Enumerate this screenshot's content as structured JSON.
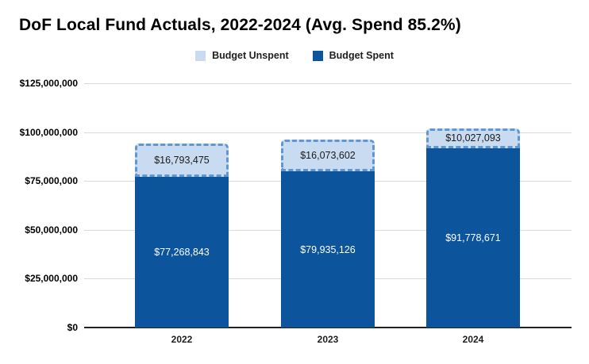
{
  "header": {
    "title": "DoF Local Fund Actuals, 2022-2024 (Avg. Spend 85.2%)"
  },
  "legend": {
    "items": [
      {
        "label": "Budget Unspent",
        "swatch": "#c9dbf1"
      },
      {
        "label": "Budget Spent",
        "swatch": "#0c549c"
      }
    ]
  },
  "chart_data": {
    "type": "bar",
    "stacked": true,
    "title": "DoF Local Fund Actuals, 2022-2024 (Avg. Spend 85.2%)",
    "categories": [
      "2022",
      "2023",
      "2024"
    ],
    "series": [
      {
        "name": "Budget Spent",
        "color": "#0c549c",
        "label_color": "#ffffff",
        "values": [
          77268843,
          79935126,
          91778671
        ],
        "data_labels": [
          "$77,268,843",
          "$79,935,126",
          "$91,778,671"
        ]
      },
      {
        "name": "Budget Unspent",
        "color": "#c9dbf1",
        "border_color": "#5e97d2",
        "border_style": "dashed",
        "label_color": "#1a1a1a",
        "values": [
          16793475,
          16073602,
          10027093
        ],
        "data_labels": [
          "$16,793,475",
          "$16,073,602",
          "$10,027,093"
        ]
      }
    ],
    "stack_order_bottom_to_top": [
      "Budget Spent",
      "Budget Unspent"
    ],
    "totals": [
      94062318,
      96008728,
      101805764
    ],
    "xlabel": "",
    "ylabel": "",
    "ylim": [
      0,
      125000000
    ],
    "yticks": [
      0,
      25000000,
      50000000,
      75000000,
      100000000,
      125000000
    ],
    "ytick_labels": [
      "$0",
      "$25,000,000",
      "$50,000,000",
      "$75,000,000",
      "$100,000,000",
      "$125,000,000"
    ],
    "grid": true,
    "legend_position": "top",
    "colors": {
      "gridline": "#d9d9d9",
      "axisline": "#212121",
      "tick_text": "#000000"
    }
  }
}
